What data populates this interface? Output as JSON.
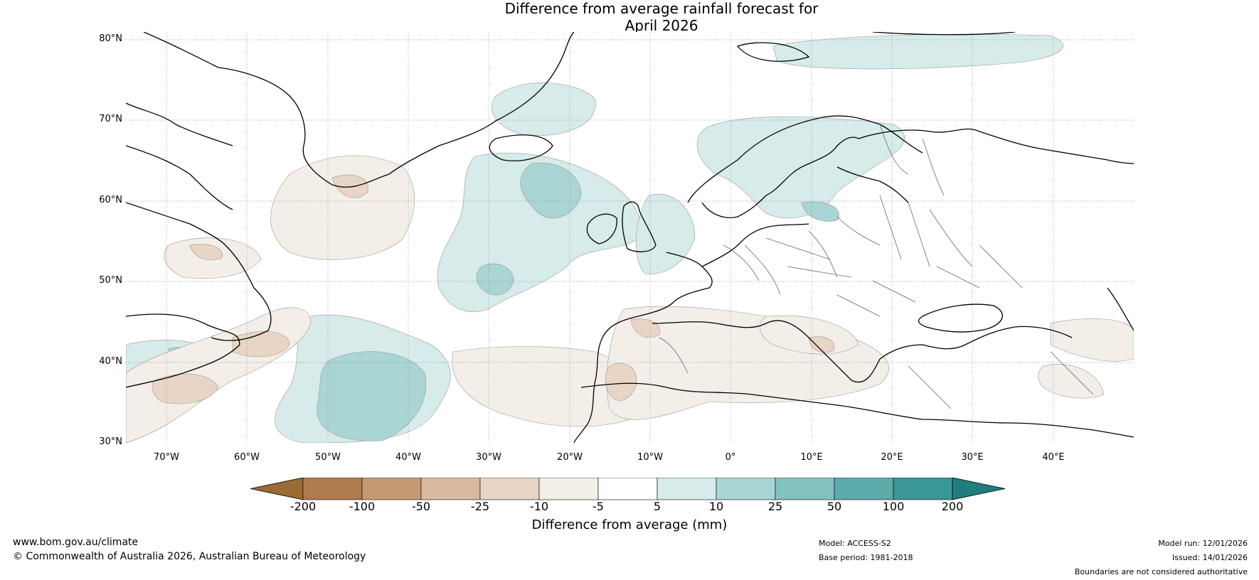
{
  "title_line1": "Difference from average rainfall forecast for",
  "title_line2": "April 2026",
  "latitude_labels": [
    "80°N",
    "70°N",
    "60°N",
    "50°N",
    "40°N",
    "30°N"
  ],
  "longitude_labels": [
    "70°W",
    "60°W",
    "50°W",
    "40°W",
    "30°W",
    "20°W",
    "10°W",
    "0°",
    "10°E",
    "20°E",
    "30°E",
    "40°E"
  ],
  "colorbar": {
    "ticks": [
      "-200",
      "-100",
      "-50",
      "-25",
      "-10",
      "-5",
      "5",
      "10",
      "25",
      "50",
      "100",
      "200"
    ],
    "colors": [
      "#9c6a34",
      "#b07b4d",
      "#c49a73",
      "#d9baa0",
      "#e8d5c5",
      "#f3eee8",
      "#ffffff",
      "#d6ebea",
      "#a9d5d4",
      "#82c2c0",
      "#5cacab",
      "#3a9896",
      "#217d7b"
    ],
    "label": "Difference from average (mm)"
  },
  "footer": {
    "website": "www.bom.gov.au/climate",
    "copyright": "© Commonwealth of Australia 2026, Australian Bureau of Meteorology",
    "model": "Model: ACCESS-S2",
    "base_period": "Base period: 1981-2018",
    "model_run": "Model run: 12/01/2026",
    "issued": "Issued: 14/01/2026",
    "disclaimer": "Boundaries are not considered authoritative"
  }
}
